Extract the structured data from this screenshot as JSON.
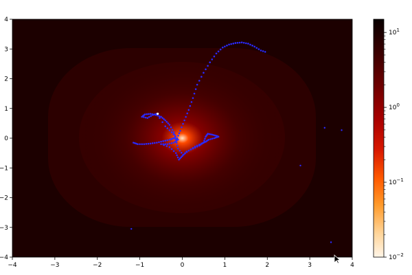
{
  "chart_data": {
    "type": "heatmap",
    "xlim": [
      -4,
      4
    ],
    "ylim": [
      -4,
      4
    ],
    "x_ticks": [
      -4,
      -3,
      -2,
      -1,
      0,
      1,
      2,
      3,
      4
    ],
    "y_ticks": [
      -4,
      -3,
      -2,
      -1,
      0,
      1,
      2,
      3,
      4
    ],
    "x_tick_labels": [
      "−4",
      "−3",
      "−2",
      "−1",
      "0",
      "1",
      "2",
      "3",
      "4"
    ],
    "y_tick_labels": [
      "−4",
      "−3",
      "−2",
      "−1",
      "0",
      "1",
      "2",
      "3",
      "4"
    ],
    "colormap": "gist_heat_r",
    "colorbar": {
      "scale": "log",
      "range": [
        0.01,
        15
      ],
      "ticks": [
        {
          "base": "10",
          "exp": "1",
          "value": 10
        },
        {
          "base": "10",
          "exp": "0",
          "value": 1
        },
        {
          "base": "10",
          "exp": "−1",
          "value": 0.1
        },
        {
          "base": "10",
          "exp": "−2",
          "value": 0.01
        }
      ]
    },
    "colors": {
      "background": "#1a0000",
      "field_mid": "#3a0000",
      "center": "#ff3a00",
      "trajectory": "#2a2aff",
      "current_point": "#ffffff"
    },
    "surface_center": [
      0,
      0
    ],
    "trajectory": [
      [
        -1.15,
        -0.15
      ],
      [
        -1.05,
        -0.2
      ],
      [
        -0.9,
        -0.2
      ],
      [
        -0.75,
        -0.18
      ],
      [
        -0.6,
        -0.15
      ],
      [
        -0.45,
        -0.1
      ],
      [
        -0.3,
        -0.05
      ],
      [
        -0.2,
        0.0
      ],
      [
        -0.1,
        -0.05
      ],
      [
        -0.2,
        -0.15
      ],
      [
        -0.35,
        -0.2
      ],
      [
        -0.5,
        -0.2
      ],
      [
        -0.3,
        -0.3
      ],
      [
        -0.15,
        -0.5
      ],
      [
        -0.08,
        -0.72
      ],
      [
        0.0,
        -0.6
      ],
      [
        0.1,
        -0.45
      ],
      [
        0.25,
        -0.35
      ],
      [
        0.4,
        -0.25
      ],
      [
        0.5,
        -0.15
      ],
      [
        0.55,
        0.05
      ],
      [
        0.6,
        0.15
      ],
      [
        0.7,
        0.12
      ],
      [
        0.8,
        0.08
      ],
      [
        0.85,
        0.05
      ],
      [
        0.75,
        0.0
      ],
      [
        0.62,
        -0.05
      ],
      [
        0.55,
        -0.12
      ],
      [
        0.45,
        -0.18
      ],
      [
        0.3,
        -0.28
      ],
      [
        0.15,
        -0.42
      ],
      [
        0.02,
        -0.56
      ],
      [
        -0.1,
        -0.35
      ],
      [
        -0.15,
        -0.05
      ],
      [
        -0.2,
        0.2
      ],
      [
        -0.3,
        0.45
      ],
      [
        -0.4,
        0.6
      ],
      [
        -0.5,
        0.72
      ],
      [
        -0.62,
        0.78
      ],
      [
        -0.75,
        0.82
      ],
      [
        -0.88,
        0.8
      ],
      [
        -0.95,
        0.72
      ],
      [
        -0.82,
        0.68
      ],
      [
        -0.7,
        0.78
      ],
      [
        -0.6,
        0.82
      ],
      [
        -0.4,
        0.4
      ],
      [
        -0.25,
        0.2
      ],
      [
        -0.12,
        0.0
      ],
      [
        -0.05,
        0.25
      ],
      [
        0.05,
        0.6
      ],
      [
        0.15,
        0.95
      ],
      [
        0.25,
        1.35
      ],
      [
        0.35,
        1.8
      ],
      [
        0.5,
        2.2
      ],
      [
        0.65,
        2.55
      ],
      [
        0.8,
        2.85
      ],
      [
        0.95,
        3.05
      ],
      [
        1.1,
        3.15
      ],
      [
        1.25,
        3.2
      ],
      [
        1.4,
        3.22
      ],
      [
        1.55,
        3.18
      ],
      [
        1.7,
        3.08
      ],
      [
        1.85,
        2.95
      ],
      [
        2.0,
        2.88
      ]
    ],
    "current_point": [
      -0.58,
      0.82
    ],
    "stray_points": [
      [
        -1.2,
        -3.05
      ],
      [
        2.78,
        -0.92
      ],
      [
        3.5,
        -3.5
      ],
      [
        3.75,
        0.27
      ],
      [
        3.35,
        0.35
      ]
    ]
  }
}
